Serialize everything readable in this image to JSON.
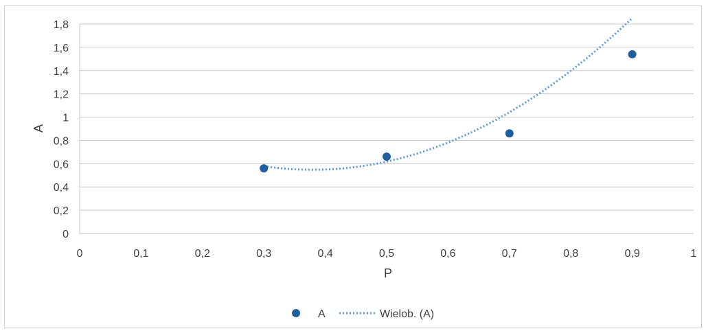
{
  "chart_data": {
    "type": "scatter",
    "xlabel": "P",
    "ylabel": "A",
    "xlim": [
      0,
      1
    ],
    "ylim": [
      0,
      1.8
    ],
    "x_ticks": [
      "0",
      "0,1",
      "0,2",
      "0,3",
      "0,4",
      "0,5",
      "0,6",
      "0,7",
      "0,8",
      "0,9",
      "1"
    ],
    "y_ticks": [
      "0",
      "0,2",
      "0,4",
      "0,6",
      "0,8",
      "1",
      "1,2",
      "1,4",
      "1,6",
      "1,8"
    ],
    "grid": "horizontal",
    "legend_position": "bottom",
    "series": [
      {
        "name": "A",
        "kind": "scatter",
        "color": "#1f5fa0",
        "x": [
          0.3,
          0.5,
          0.7,
          0.9
        ],
        "y": [
          0.56,
          0.66,
          0.86,
          1.54
        ]
      },
      {
        "name": "Wielob. (A)",
        "kind": "trendline-polynomial",
        "style": "dotted",
        "color": "#5b9bd5",
        "coefficients_a_b_c": [
          4.81,
          -3.65,
          1.24
        ],
        "x_range": [
          0.3,
          0.9
        ]
      }
    ]
  }
}
